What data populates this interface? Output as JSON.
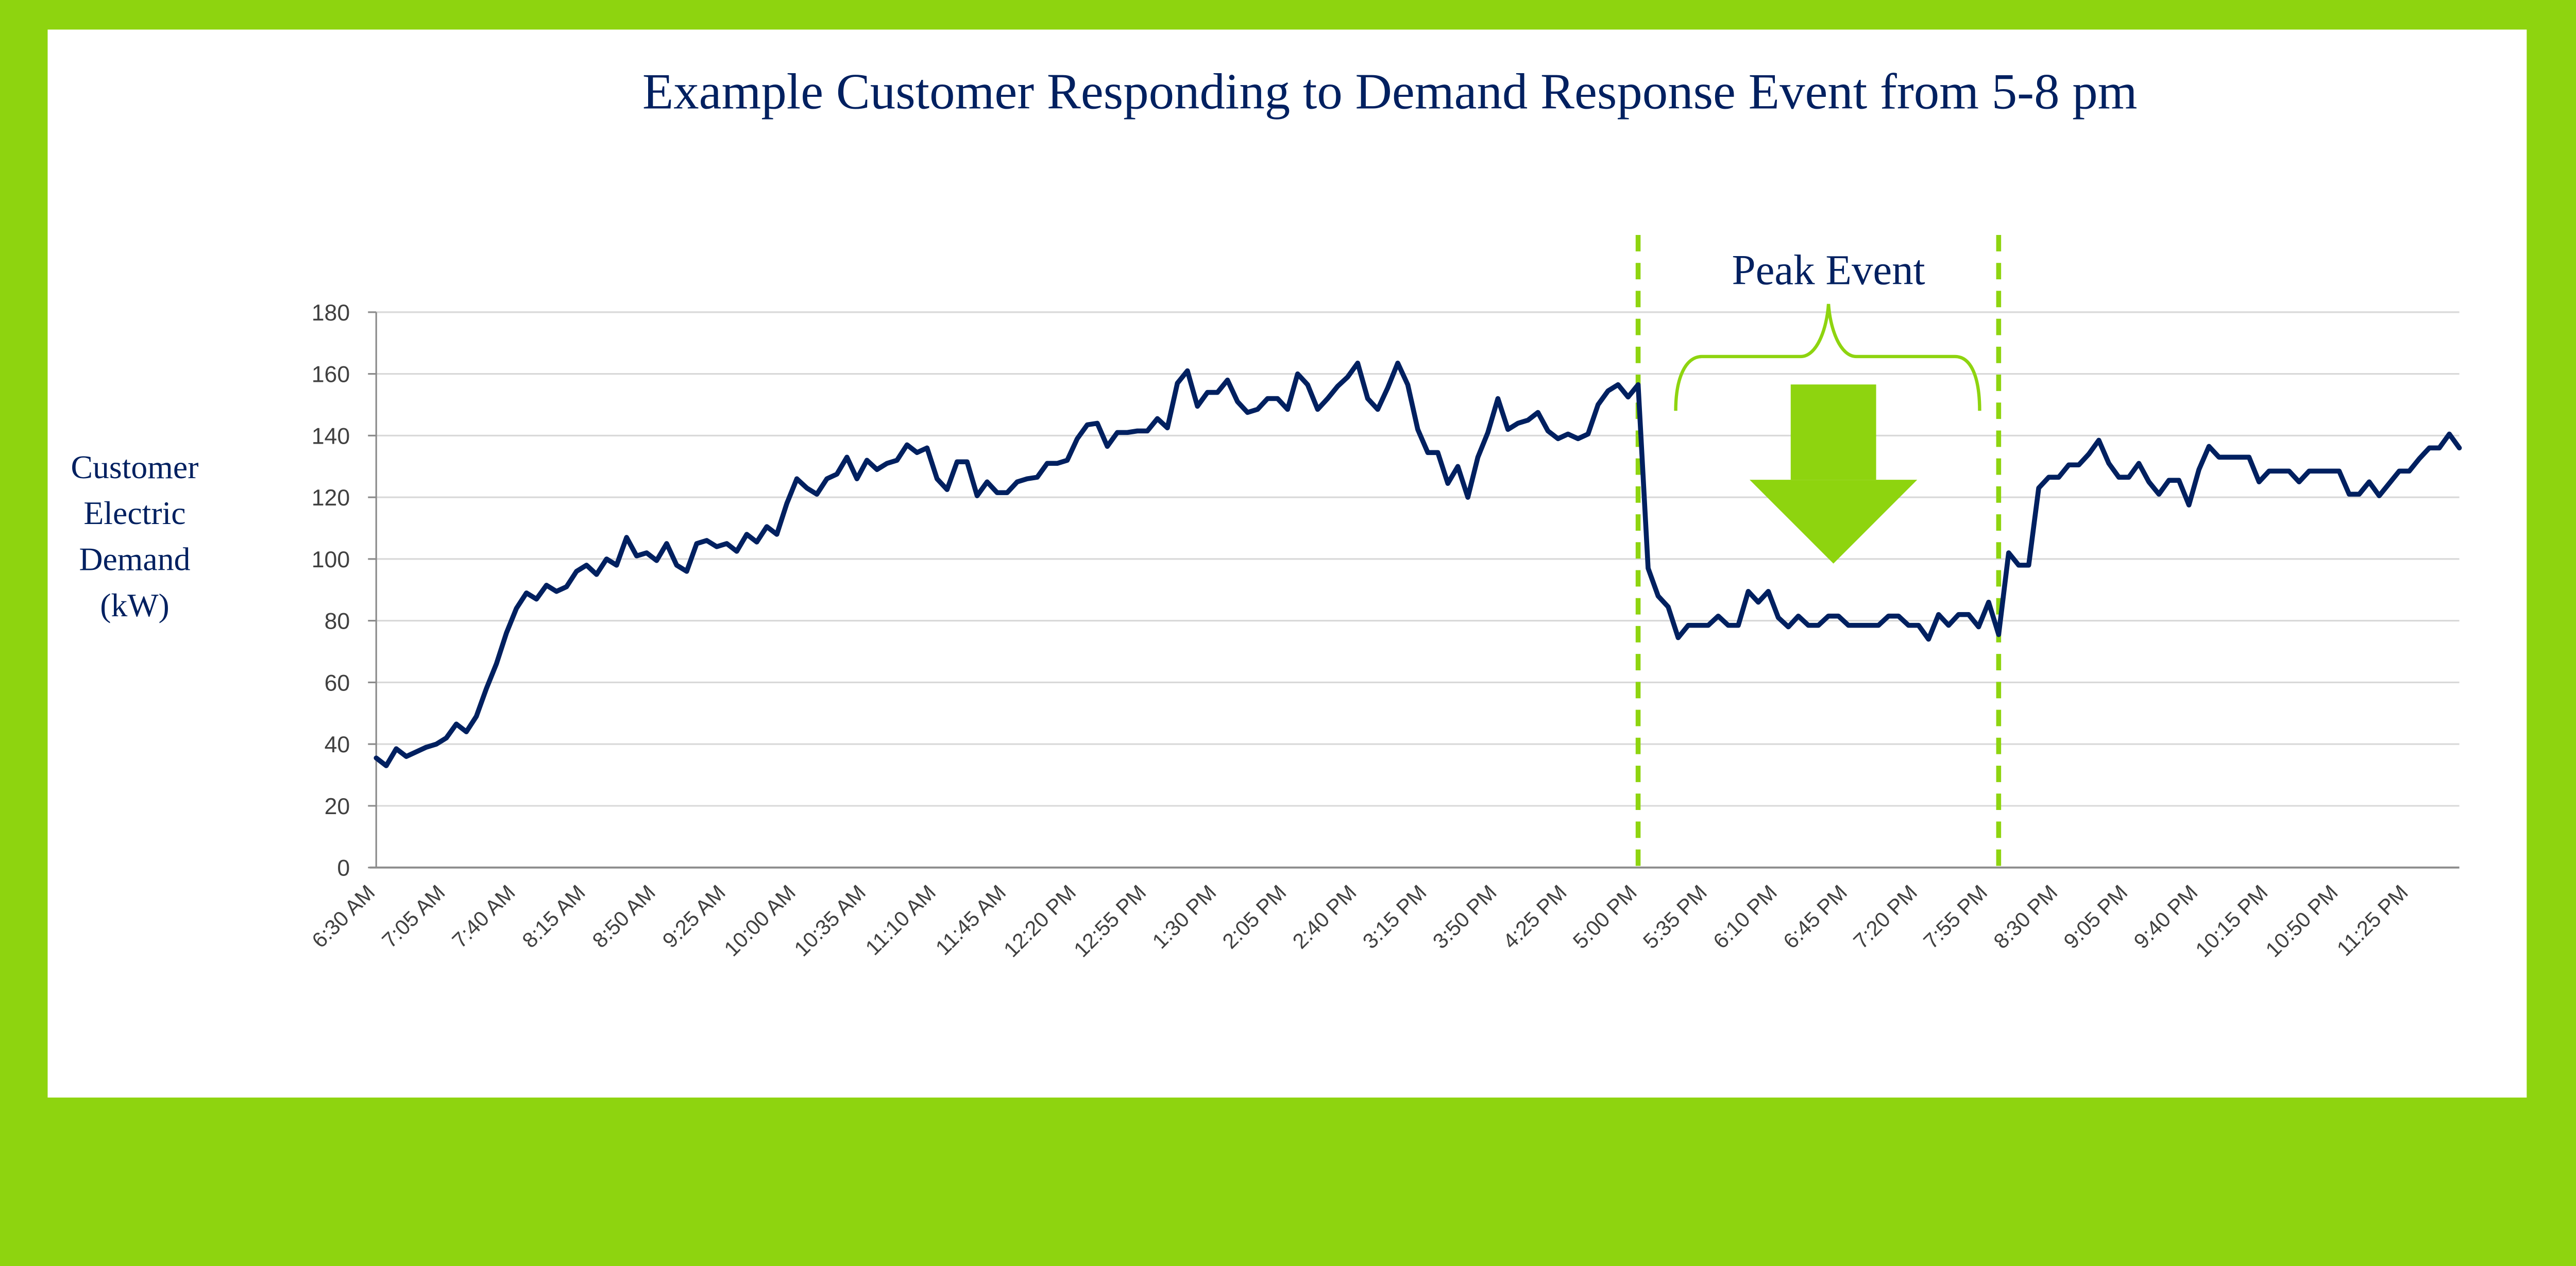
{
  "colors": {
    "frame": "#8ED40F",
    "text": "#002060",
    "line": "#002060",
    "event": "#8ED40F",
    "grid": "#D9D9D9"
  },
  "chart_data": {
    "type": "line",
    "title": "Example Customer Responding to Demand Response Event from 5-8 pm",
    "ylabel_lines": [
      "Customer",
      "Electric",
      "Demand",
      "(kW)"
    ],
    "xlabel": "",
    "ylim": [
      0,
      180
    ],
    "yticks": [
      0,
      20,
      40,
      60,
      80,
      100,
      120,
      140,
      160,
      180
    ],
    "grid": true,
    "legend": "none",
    "x_tick_labels": [
      "6:30 AM",
      "7:05 AM",
      "7:40 AM",
      "8:15 AM",
      "8:50 AM",
      "9:25 AM",
      "10:00 AM",
      "10:35 AM",
      "11:10 AM",
      "11:45 AM",
      "12:20 PM",
      "12:55 PM",
      "1:30 PM",
      "2:05 PM",
      "2:40 PM",
      "3:15 PM",
      "3:50 PM",
      "4:25 PM",
      "5:00 PM",
      "5:35 PM",
      "6:10 PM",
      "6:45 PM",
      "7:20 PM",
      "7:55 PM",
      "8:30 PM",
      "9:05 PM",
      "9:40 PM",
      "10:15 PM",
      "10:50 PM",
      "11:25 PM"
    ],
    "x_interval_minutes": 5,
    "x_start": "6:30 AM",
    "x_end": "11:50 PM",
    "values": [
      35.5,
      33,
      38.5,
      36,
      37.5,
      39,
      40,
      42,
      46.5,
      44,
      49,
      58,
      66,
      76,
      84,
      89,
      87,
      91.5,
      89.5,
      91,
      96,
      98,
      95,
      100,
      98,
      107,
      101,
      102,
      99.5,
      105,
      98,
      96,
      105,
      106,
      104,
      105,
      102.5,
      108,
      105.5,
      110.5,
      108,
      118,
      126,
      123,
      121,
      126,
      127.5,
      133,
      126,
      132,
      129,
      131,
      132,
      137,
      134.5,
      136,
      126,
      122.5,
      131.5,
      131.5,
      120.5,
      125,
      121.5,
      121.5,
      125,
      126,
      126.5,
      131,
      131,
      132,
      139,
      143.5,
      144,
      136.5,
      141,
      141,
      141.5,
      141.5,
      145.5,
      142.5,
      157,
      161,
      149.5,
      154,
      154,
      158,
      151,
      147.5,
      148.5,
      152,
      152,
      148.5,
      160,
      156.5,
      148.5,
      152,
      156,
      159,
      163.5,
      152,
      148.5,
      155.5,
      163.5,
      156.5,
      142,
      134.5,
      134.5,
      124.5,
      130,
      120,
      133,
      141,
      152,
      142,
      144,
      145,
      147.5,
      141.5,
      139,
      140.5,
      139,
      140.5,
      150,
      154.5,
      156.5,
      152.5,
      156.5,
      97,
      88,
      84.5,
      74.5,
      78.5,
      78.5,
      78.5,
      81.5,
      78.5,
      78.5,
      89.5,
      86,
      89.5,
      81,
      78,
      81.5,
      78.5,
      78.5,
      81.5,
      81.5,
      78.5,
      78.5,
      78.5,
      78.5,
      81.5,
      81.5,
      78.5,
      78.5,
      74,
      82,
      78.5,
      82,
      82,
      78,
      86,
      75.5,
      102,
      98,
      98,
      123,
      126.5,
      126.5,
      130.5,
      130.5,
      134,
      138.5,
      131,
      126.5,
      126.5,
      131,
      125,
      121,
      125.5,
      125.5,
      117.5,
      129,
      136.5,
      133,
      133,
      133,
      133,
      125,
      128.5,
      128.5,
      128.5,
      125,
      128.5,
      128.5,
      128.5,
      128.5,
      121,
      121,
      125,
      120.5,
      124.5,
      128.5,
      128.5,
      132.5,
      136,
      136,
      140.5,
      136
    ],
    "event": {
      "start": "5:00 PM",
      "end": "8:00 PM",
      "label": "Peak Event"
    }
  }
}
